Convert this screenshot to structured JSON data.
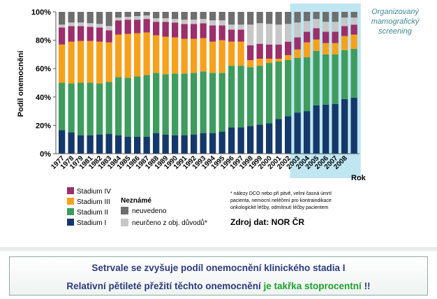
{
  "chart_data": {
    "type": "bar",
    "stacked": true,
    "ylabel": "Podíl onemocnění",
    "xlabel": "Rok",
    "ylim": [
      0,
      100
    ],
    "yticks": [
      "0%",
      "20%",
      "40%",
      "60%",
      "80%",
      "100%"
    ],
    "grid": false,
    "legend_position": "bottom-left",
    "categories": [
      "1977",
      "1978",
      "1979",
      "1980",
      "1981",
      "1982",
      "1983",
      "1984",
      "1985",
      "1986",
      "1987",
      "1988",
      "1989",
      "1990",
      "1991",
      "1992",
      "1993",
      "1994",
      "1995",
      "1996",
      "1997",
      "1998",
      "1999",
      "2000",
      "2001",
      "2002",
      "2003",
      "2004",
      "2005",
      "2006",
      "2007",
      "2008"
    ],
    "x_tick_labels": [
      "1977",
      "1978",
      "1979",
      "1981",
      "1982",
      "1983",
      "1984",
      "1985",
      "1986",
      "1987",
      "1988",
      "1989",
      "1990",
      "1991",
      "1992",
      "1993",
      "1994",
      "1995",
      "1996",
      "1997",
      "1998",
      "1999",
      "2000",
      "2001",
      "2002",
      "2003",
      "2004",
      "2005",
      "2006",
      "2007",
      "2008"
    ],
    "series": [
      {
        "name": "Stadium I",
        "color": "#15386a",
        "values": [
          16.5,
          15,
          13,
          13,
          13.5,
          14,
          13,
          12,
          12,
          12,
          14.5,
          13.5,
          13,
          13,
          13.5,
          14.5,
          14.5,
          15.5,
          18.5,
          18.5,
          19.5,
          20.5,
          21.5,
          24.5,
          26.5,
          29,
          30,
          34,
          34.5,
          35,
          38.5,
          39.5
        ]
      },
      {
        "name": "Stadium II",
        "color": "#3e9c5f",
        "values": [
          33.5,
          34.5,
          37,
          37,
          36,
          36.5,
          41,
          41.5,
          42.5,
          43.5,
          42.5,
          42.5,
          43.5,
          43.5,
          43.5,
          43.5,
          42.5,
          41.5,
          43.5,
          43.5,
          41.5,
          41.5,
          42.5,
          40.5,
          39.5,
          38.5,
          38,
          38.5,
          35.5,
          35,
          34.5,
          34.5
        ]
      },
      {
        "name": "Stadium III",
        "color": "#f6a11d",
        "values": [
          27,
          29.5,
          29.5,
          29.5,
          29.5,
          28,
          30,
          31,
          30.5,
          30,
          26.5,
          26.5,
          25.5,
          24.5,
          24,
          23.5,
          22,
          23,
          17,
          17,
          5,
          5,
          3,
          2,
          3.5,
          6,
          10.5,
          8,
          8,
          8,
          10,
          10
        ]
      },
      {
        "name": "Stadium IV",
        "color": "#9b2f6b",
        "values": [
          12,
          11,
          10.5,
          10,
          10,
          8.5,
          10,
          10,
          9.5,
          9.5,
          9.5,
          10.5,
          10.5,
          10.5,
          10.5,
          10.5,
          11.5,
          10.5,
          8.5,
          8.5,
          10.5,
          10.5,
          10,
          10,
          9.5,
          8.5,
          7.5,
          8,
          8,
          8,
          7,
          7
        ]
      },
      {
        "name": "neurčeno z obj. důvodů*",
        "color": "#c7c7c7",
        "values": [
          2,
          2.5,
          2.5,
          2.5,
          2.5,
          3,
          2,
          2,
          2.5,
          2.5,
          2.5,
          2.5,
          2.5,
          3,
          3,
          3,
          3.5,
          3.5,
          3.5,
          3.5,
          14.5,
          14.5,
          14.5,
          14,
          12.5,
          10.5,
          7.5,
          6.5,
          7,
          7,
          6,
          5
        ]
      },
      {
        "name": "neuvedeno",
        "color": "#6e6e6e",
        "values": [
          9,
          7.5,
          7.5,
          8,
          8.5,
          10,
          4,
          3.5,
          3,
          2.5,
          4.5,
          4.5,
          5,
          5.5,
          5.5,
          5,
          6,
          6,
          9,
          9,
          9,
          8,
          8.5,
          9,
          8.5,
          7.5,
          6.5,
          5,
          7,
          7,
          4,
          4
        ]
      }
    ],
    "legend_group_label": "Neznámé",
    "annotation": "Organizovaný mamografický screening",
    "highlight_range": [
      "2002",
      "2008"
    ],
    "footnote": [
      "* nálezy DCO nebo při pitvě, velmi časná úmrtí",
      "pacienta, nemocní neléčení pro kontraindikace",
      "onkologické léčby, odmítnutí léčby pacientem"
    ],
    "source": "Zdroj dat: NOR ČR"
  },
  "footer": {
    "line1": "Setrvale se zvyšuje podíl onemocnění klinického stadia I",
    "line2_prefix": "Relativní pětileté přežití těchto onemocnění",
    "line2_highlight": "je takřka stoprocentní",
    "line2_suffix": "!!"
  }
}
